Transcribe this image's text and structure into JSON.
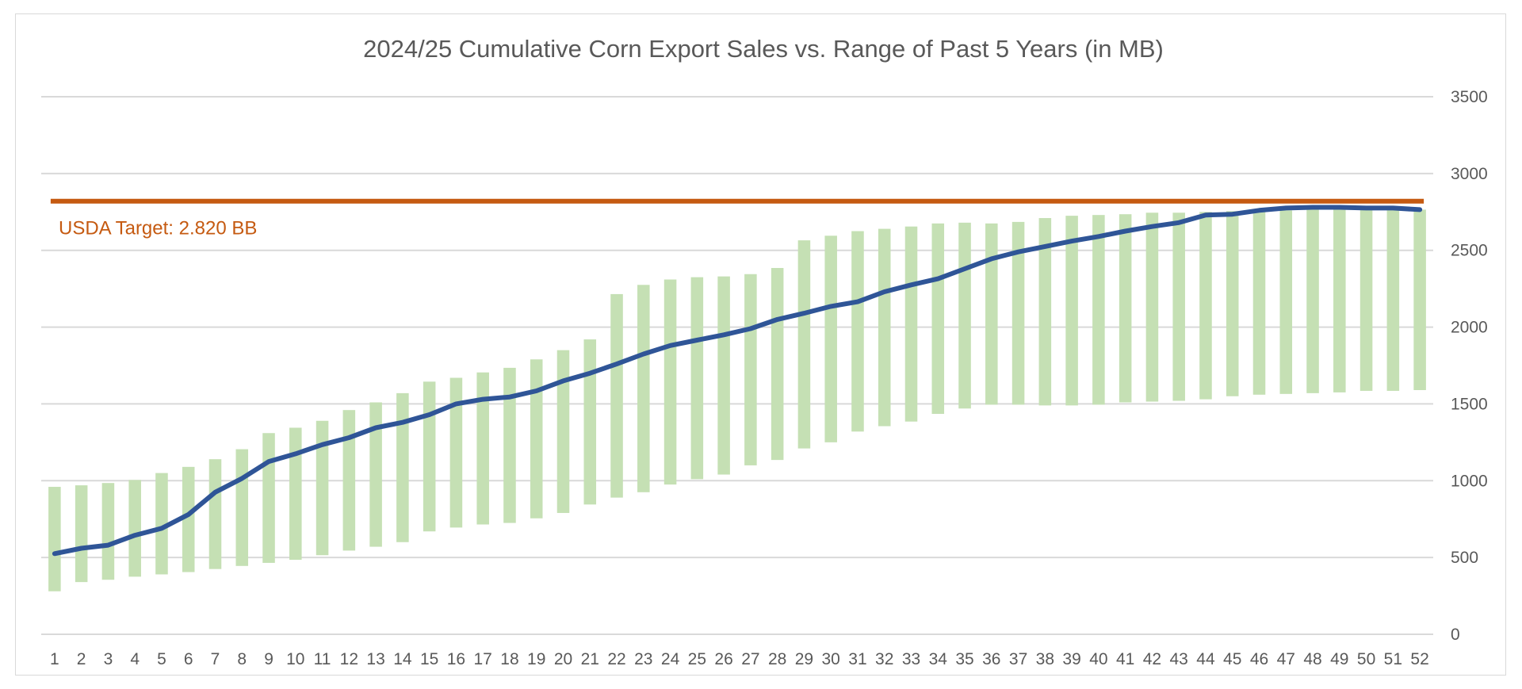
{
  "chart_data": {
    "type": "bar",
    "title": "2024/25 Cumulative Corn Export Sales vs. Range of Past 5 Years (in MB)",
    "xlabel": "",
    "ylabel": "",
    "x": [
      1,
      2,
      3,
      4,
      5,
      6,
      7,
      8,
      9,
      10,
      11,
      12,
      13,
      14,
      15,
      16,
      17,
      18,
      19,
      20,
      21,
      22,
      23,
      24,
      25,
      26,
      27,
      28,
      29,
      30,
      31,
      32,
      33,
      34,
      35,
      36,
      37,
      38,
      39,
      40,
      41,
      42,
      43,
      44,
      45,
      46,
      47,
      48,
      49,
      50,
      51,
      52
    ],
    "ylim": [
      0,
      3500
    ],
    "yticks": [
      0,
      500,
      1000,
      1500,
      2000,
      2500,
      3000,
      3500
    ],
    "y_axis_position": "right",
    "grid": true,
    "legend": "none",
    "range_bars": {
      "color": "#c5e0b4",
      "low": [
        280,
        340,
        355,
        375,
        390,
        405,
        425,
        445,
        465,
        485,
        515,
        545,
        570,
        600,
        670,
        695,
        715,
        725,
        755,
        790,
        845,
        890,
        925,
        975,
        1010,
        1040,
        1100,
        1135,
        1210,
        1250,
        1320,
        1355,
        1385,
        1435,
        1470,
        1495,
        1495,
        1490,
        1490,
        1495,
        1510,
        1515,
        1520,
        1530,
        1550,
        1560,
        1565,
        1570,
        1575,
        1585,
        1585,
        1590
      ],
      "high": [
        960,
        970,
        985,
        1005,
        1050,
        1090,
        1140,
        1205,
        1310,
        1345,
        1390,
        1460,
        1510,
        1570,
        1645,
        1670,
        1705,
        1735,
        1790,
        1850,
        1920,
        2215,
        2275,
        2310,
        2325,
        2330,
        2345,
        2385,
        2565,
        2595,
        2625,
        2640,
        2655,
        2675,
        2680,
        2675,
        2685,
        2710,
        2725,
        2730,
        2735,
        2745,
        2745,
        2750,
        2755,
        2760,
        2760,
        2765,
        2765,
        2765,
        2765,
        2765
      ]
    },
    "series": [
      {
        "color": "#2f5597",
        "values": [
          525,
          560,
          580,
          645,
          690,
          780,
          925,
          1015,
          1125,
          1175,
          1235,
          1280,
          1345,
          1380,
          1430,
          1500,
          1530,
          1545,
          1585,
          1650,
          1700,
          1760,
          1825,
          1880,
          1915,
          1950,
          1990,
          2050,
          2090,
          2135,
          2165,
          2230,
          2275,
          2315,
          2380,
          2445,
          2490,
          2525,
          2560,
          2590,
          2625,
          2655,
          2680,
          2730,
          2735,
          2760,
          2775,
          2780,
          2780,
          2775,
          2775,
          2765
        ]
      }
    ],
    "target_line": {
      "value": 2820,
      "label": "USDA Target: 2.820 BB",
      "color": "#c55a11"
    }
  }
}
